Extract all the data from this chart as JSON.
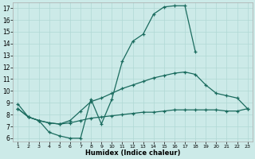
{
  "xlabel": "Humidex (Indice chaleur)",
  "bg_color": "#cceae8",
  "grid_color": "#b0d8d5",
  "line_color": "#1a6b5e",
  "xlim": [
    0.5,
    23.5
  ],
  "ylim": [
    5.7,
    17.5
  ],
  "xticks": [
    1,
    2,
    3,
    4,
    5,
    6,
    7,
    8,
    9,
    10,
    11,
    12,
    13,
    14,
    15,
    16,
    17,
    18,
    19,
    20,
    21,
    22,
    23
  ],
  "yticks": [
    6,
    7,
    8,
    9,
    10,
    11,
    12,
    13,
    14,
    15,
    16,
    17
  ],
  "line1_x": [
    1,
    2,
    3,
    4,
    5,
    6,
    7,
    8,
    9,
    10,
    11,
    12,
    13,
    14,
    15,
    16,
    17,
    18
  ],
  "line1_y": [
    8.9,
    7.8,
    7.5,
    6.5,
    6.2,
    6.0,
    6.0,
    9.3,
    7.2,
    9.3,
    12.5,
    14.2,
    14.8,
    16.5,
    17.1,
    17.2,
    17.2,
    13.3
  ],
  "line2_x": [
    1,
    2,
    3,
    4,
    5,
    6,
    7,
    8,
    9,
    10,
    11,
    12,
    13,
    14,
    15,
    16,
    17,
    18,
    19,
    20,
    21,
    22,
    23
  ],
  "line2_y": [
    8.5,
    7.8,
    7.5,
    7.3,
    7.2,
    7.5,
    8.3,
    9.1,
    9.4,
    9.8,
    10.2,
    10.5,
    10.8,
    11.1,
    11.3,
    11.5,
    11.6,
    11.4,
    10.5,
    9.8,
    9.6,
    9.4,
    8.5
  ],
  "line3_x": [
    1,
    2,
    3,
    4,
    5,
    6,
    7,
    8,
    9,
    10,
    11,
    12,
    13,
    14,
    15,
    16,
    17,
    18,
    19,
    20,
    21,
    22,
    23
  ],
  "line3_y": [
    8.5,
    7.8,
    7.5,
    7.3,
    7.2,
    7.3,
    7.5,
    7.7,
    7.8,
    7.9,
    8.0,
    8.1,
    8.2,
    8.2,
    8.3,
    8.4,
    8.4,
    8.4,
    8.4,
    8.4,
    8.3,
    8.3,
    8.5
  ]
}
